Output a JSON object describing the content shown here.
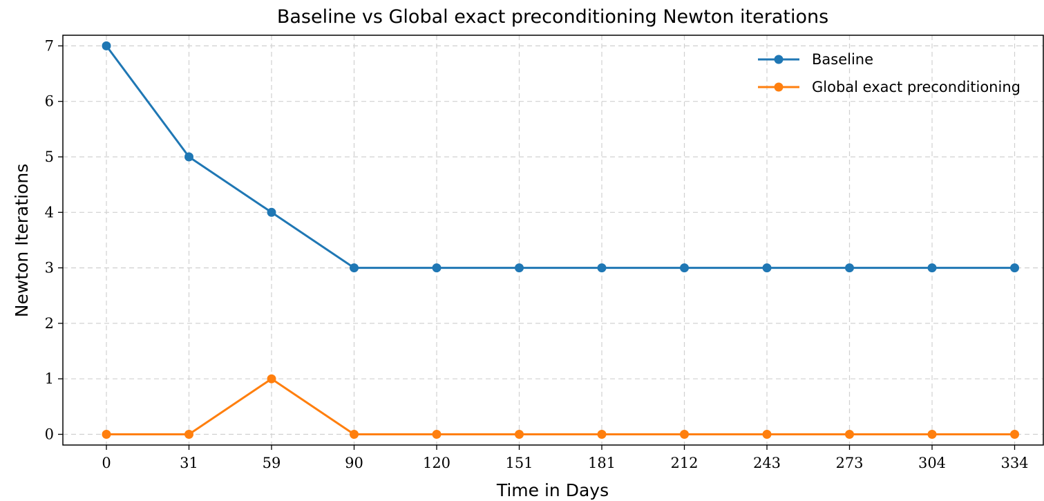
{
  "chart_data": {
    "type": "line",
    "title": "Baseline vs Global exact preconditioning Newton iterations",
    "xlabel": "Time in Days",
    "ylabel": "Newton Iterations",
    "x": [
      0,
      31,
      59,
      90,
      120,
      151,
      181,
      212,
      243,
      273,
      304,
      334
    ],
    "xticks": [
      "0",
      "31",
      "59",
      "90",
      "120",
      "151",
      "181",
      "212",
      "243",
      "273",
      "304",
      "334"
    ],
    "yticks": [
      "0",
      "1",
      "2",
      "3",
      "4",
      "5",
      "6",
      "7"
    ],
    "ylim": [
      -0.2,
      7.2
    ],
    "grid": true,
    "legend_position": "top-right",
    "series": [
      {
        "name": "Baseline",
        "color": "#1f77b4",
        "values": [
          7,
          5,
          4,
          3,
          3,
          3,
          3,
          3,
          3,
          3,
          3,
          3
        ]
      },
      {
        "name": "Global exact preconditioning",
        "color": "#ff7f0e",
        "values": [
          0,
          0,
          1,
          0,
          0,
          0,
          0,
          0,
          0,
          0,
          0,
          0
        ]
      }
    ]
  }
}
